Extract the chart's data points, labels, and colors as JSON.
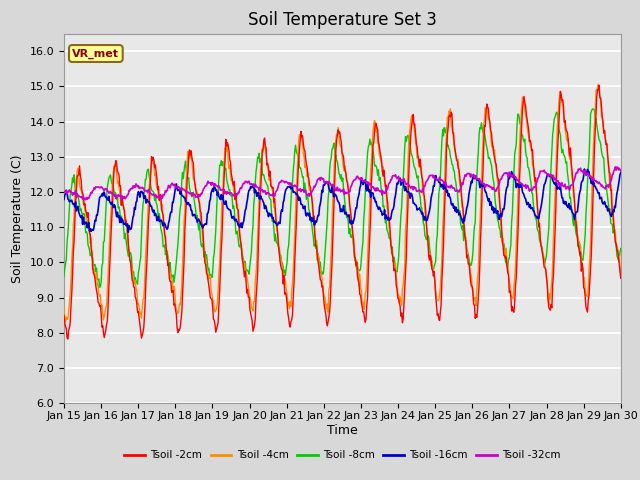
{
  "title": "Soil Temperature Set 3",
  "xlabel": "Time",
  "ylabel": "Soil Temperature (C)",
  "ylim": [
    6.0,
    16.5
  ],
  "yticks": [
    6.0,
    7.0,
    8.0,
    9.0,
    10.0,
    11.0,
    12.0,
    13.0,
    14.0,
    15.0,
    16.0
  ],
  "date_labels": [
    "Jan 15",
    "Jan 16",
    "Jan 17",
    "Jan 18",
    "Jan 19",
    "Jan 20",
    "Jan 21",
    "Jan 22",
    "Jan 23",
    "Jan 24",
    "Jan 25",
    "Jan 26",
    "Jan 27",
    "Jan 28",
    "Jan 29",
    "Jan 30"
  ],
  "series": [
    {
      "label": "Tsoil -2cm",
      "color": "#FF0000"
    },
    {
      "label": "Tsoil -4cm",
      "color": "#FF8C00"
    },
    {
      "label": "Tsoil -8cm",
      "color": "#00CC00"
    },
    {
      "label": "Tsoil -16cm",
      "color": "#0000CC"
    },
    {
      "label": "Tsoil -32cm",
      "color": "#CC00CC"
    }
  ],
  "legend_label": "VR_met",
  "fig_bg_color": "#D8D8D8",
  "plot_bg_color": "#E8E8E8",
  "grid_color": "#FFFFFF",
  "title_fontsize": 12,
  "axis_fontsize": 9,
  "tick_fontsize": 8
}
